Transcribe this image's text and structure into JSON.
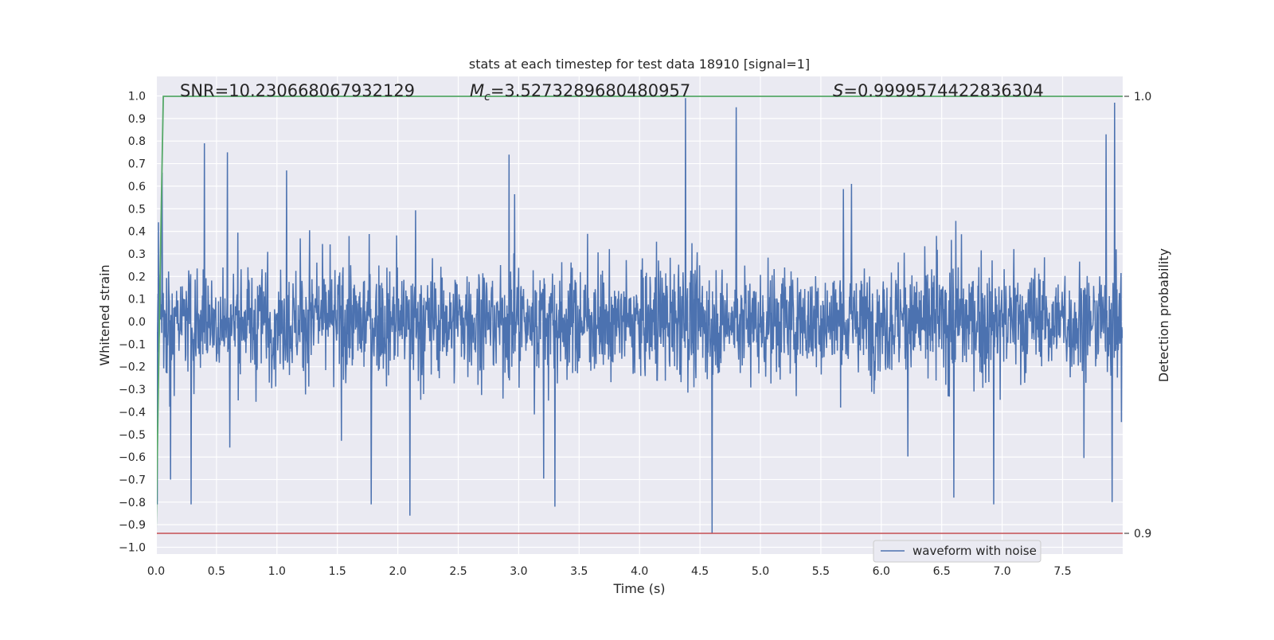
{
  "chart_data": {
    "type": "line",
    "title": "stats at each timestep for test data 18910 [signal=1]",
    "xlabel": "Time (s)",
    "ylabel": "Whitened strain",
    "ylabel_right": "Detection probability",
    "xlim": [
      0.0,
      8.0
    ],
    "ylim": [
      -1.05,
      1.05
    ],
    "ylim_right": [
      0.9,
      1.0
    ],
    "grid": true,
    "x_ticks": [
      "0.0",
      "0.5",
      "1.0",
      "1.5",
      "2.0",
      "2.5",
      "3.0",
      "3.5",
      "4.0",
      "4.5",
      "5.0",
      "5.5",
      "6.0",
      "6.5",
      "7.0",
      "7.5"
    ],
    "y_ticks": [
      "1.0",
      "0.9",
      "0.8",
      "0.7",
      "0.6",
      "0.5",
      "0.4",
      "0.3",
      "0.2",
      "0.1",
      "0.0",
      "−0.1",
      "−0.2",
      "−0.3",
      "−0.4",
      "−0.5",
      "−0.6",
      "−0.7",
      "−0.8",
      "−0.9",
      "−1.0"
    ],
    "y_ticks_right": [
      "1.0",
      "0.9"
    ],
    "annotations": {
      "snr": "SNR=10.230668067932129",
      "mc_symbol": "M",
      "mc_sub": "c",
      "mc_value": "=3.5273289680480957",
      "s_symbol": "S",
      "s_value": "=0.9999574422836304"
    },
    "legend": {
      "label": "waveform with noise",
      "placement": "lower-right"
    },
    "series": [
      {
        "name": "waveform with noise",
        "color": "#4c72b0",
        "axis": "left",
        "sample_rate_hz": 2048,
        "duration_s": 8.0,
        "envelope": "noise, typical amplitude ±0.4",
        "notable_peaks": [
          {
            "x": 0.01,
            "y": -0.81
          },
          {
            "x": 0.02,
            "y": 0.44
          },
          {
            "x": 0.05,
            "y": 0.66
          },
          {
            "x": 0.12,
            "y": -0.7
          },
          {
            "x": 0.29,
            "y": -0.81
          },
          {
            "x": 0.4,
            "y": 0.79
          },
          {
            "x": 0.59,
            "y": 0.75
          },
          {
            "x": 1.08,
            "y": 0.67
          },
          {
            "x": 1.78,
            "y": -0.81
          },
          {
            "x": 2.1,
            "y": -0.86
          },
          {
            "x": 2.92,
            "y": 0.74
          },
          {
            "x": 3.3,
            "y": -0.82
          },
          {
            "x": 4.38,
            "y": 0.99
          },
          {
            "x": 4.6,
            "y": -0.94
          },
          {
            "x": 4.8,
            "y": 0.95
          },
          {
            "x": 6.6,
            "y": -0.78
          },
          {
            "x": 6.93,
            "y": -0.81
          },
          {
            "x": 7.86,
            "y": 0.83
          },
          {
            "x": 7.93,
            "y": 0.97
          },
          {
            "x": 7.91,
            "y": -0.8
          }
        ]
      },
      {
        "name": "",
        "color": "#55a868",
        "axis": "right",
        "x": [
          0.0,
          0.02,
          0.04,
          0.06,
          0.08,
          8.0
        ],
        "values": [
          0.9,
          0.935,
          0.97,
          1.0,
          1.0,
          1.0
        ]
      },
      {
        "name": "",
        "color": "#c44e52",
        "axis": "right",
        "x": [
          0.0,
          8.0
        ],
        "values": [
          0.9,
          0.9
        ]
      }
    ]
  }
}
